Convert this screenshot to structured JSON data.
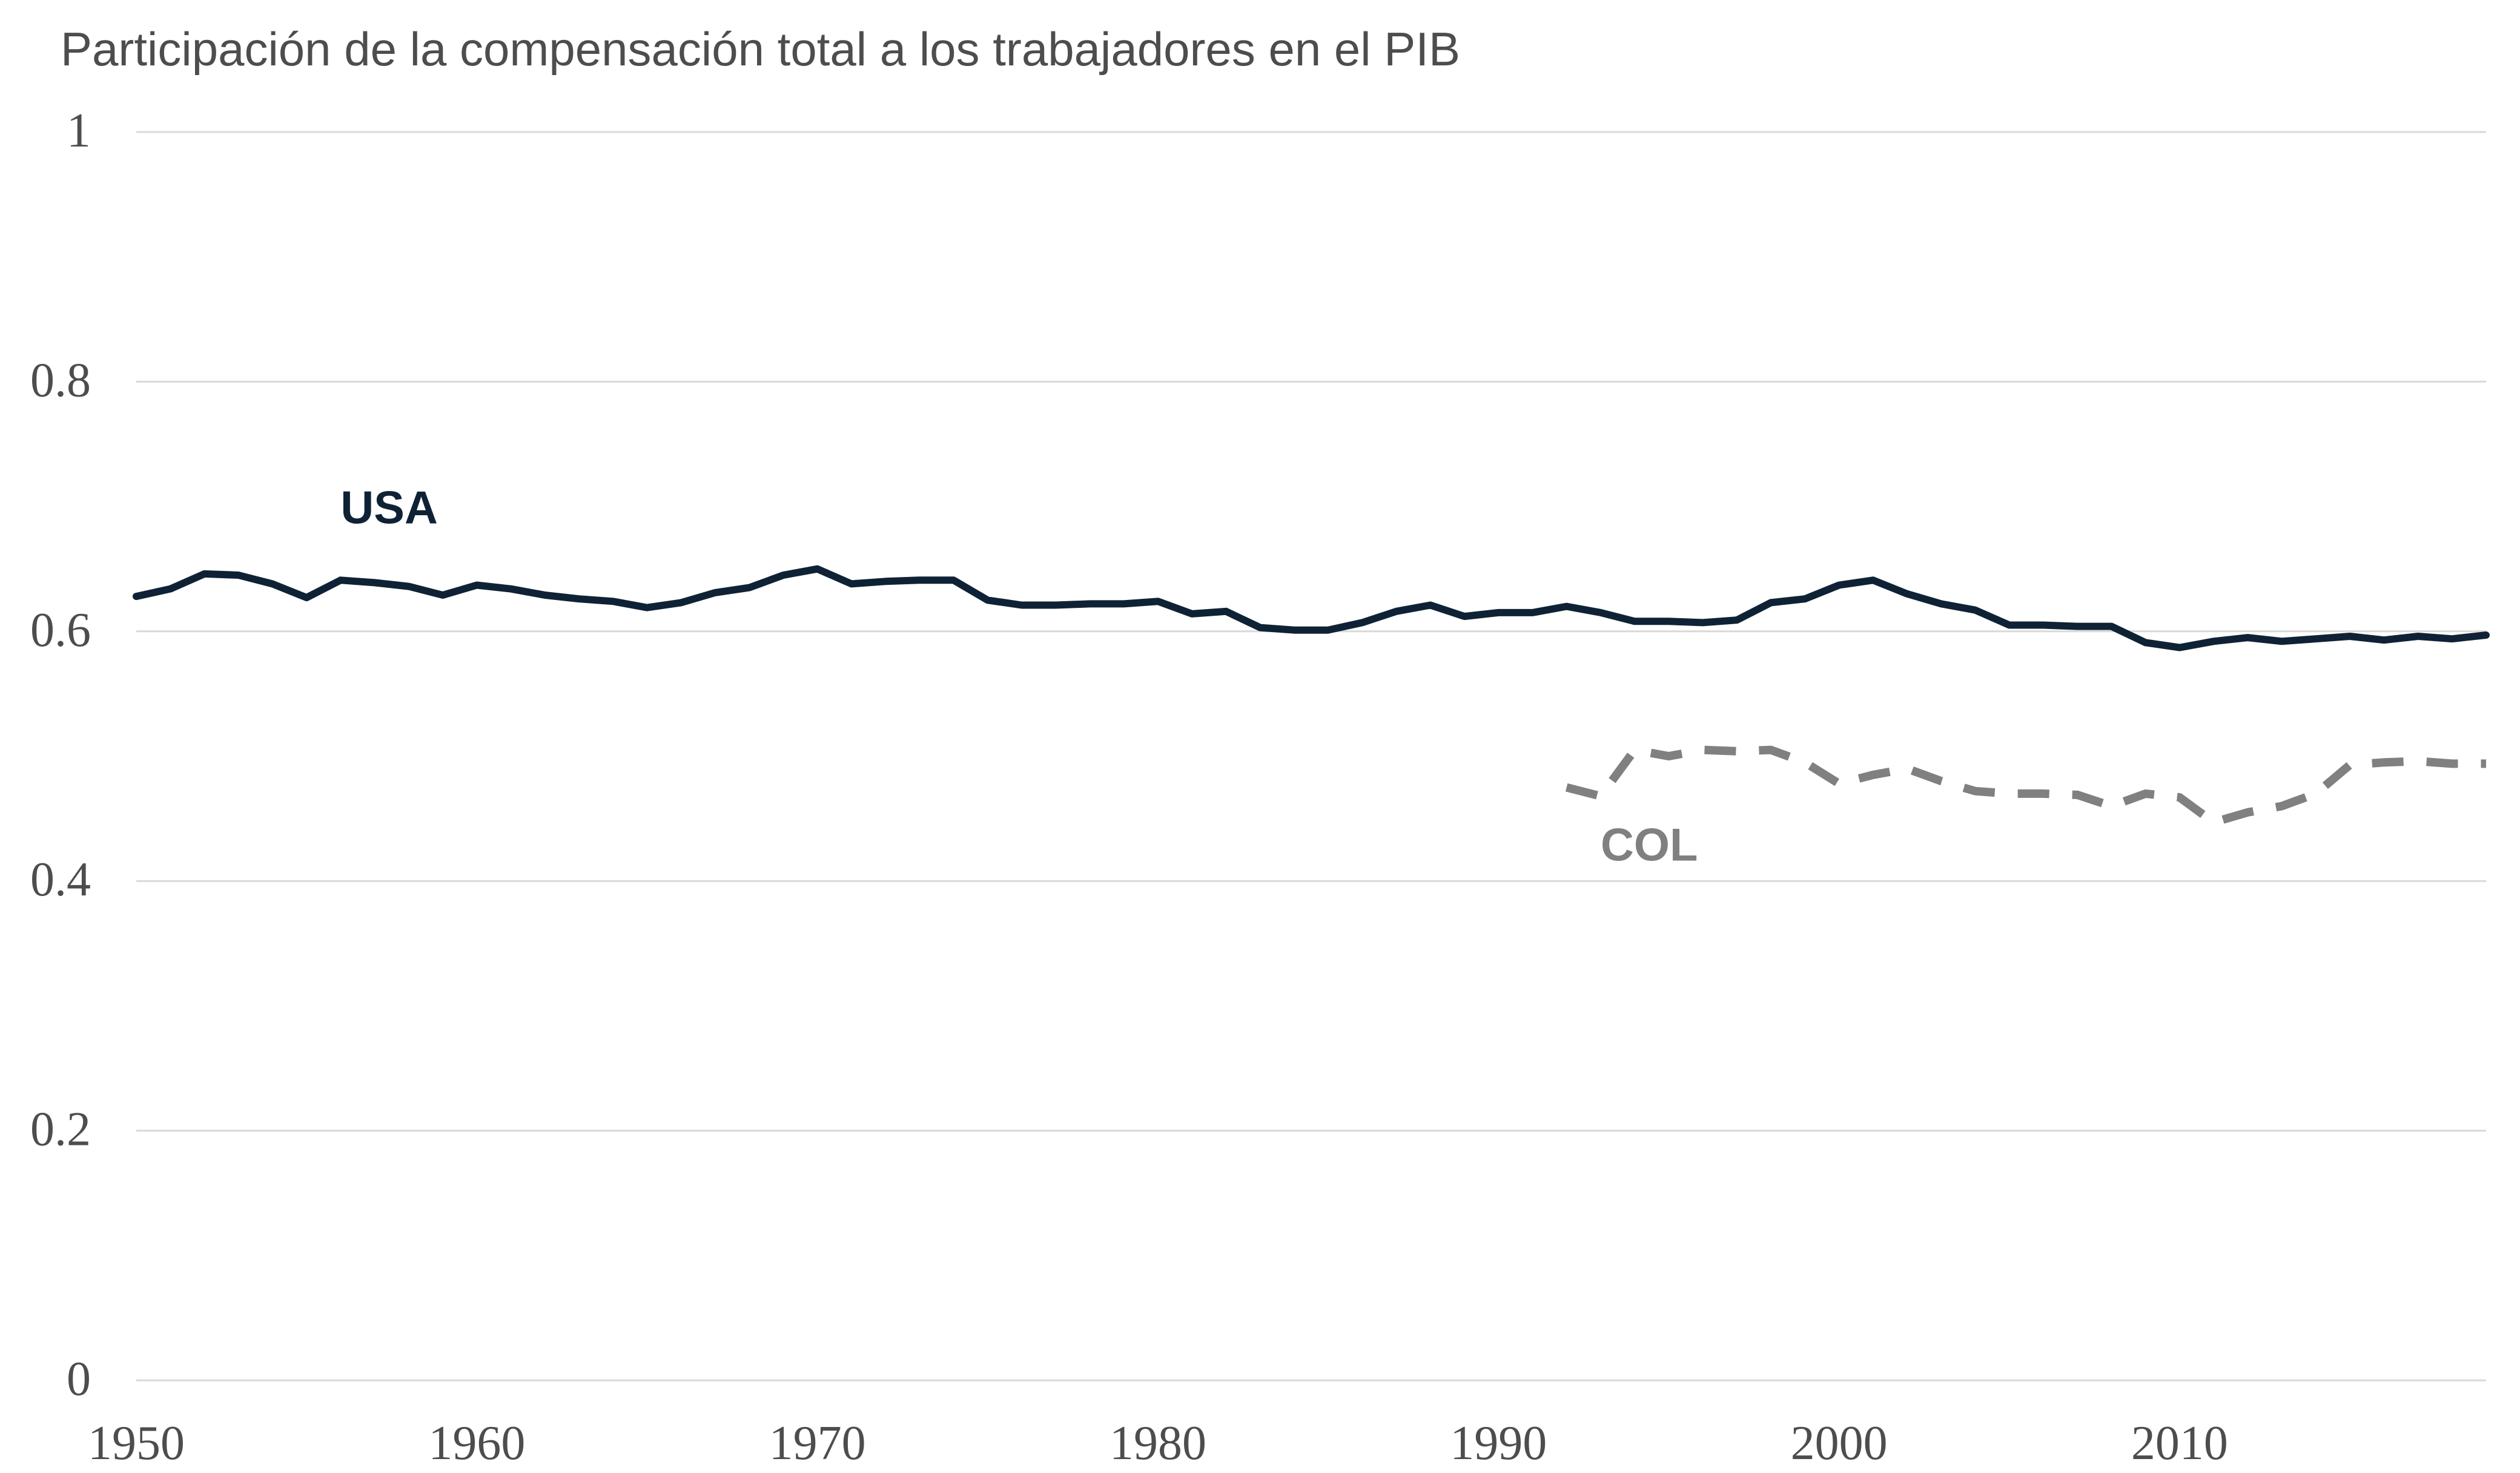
{
  "chart_data": {
    "type": "line",
    "title": "Participación de la compensación total a los trabajadores en el PIB",
    "xlabel": "",
    "ylabel": "",
    "xlim": [
      1950,
      2019
    ],
    "ylim": [
      0,
      1
    ],
    "grid": true,
    "legend": "inline labels",
    "x_ticks": [
      1950,
      1960,
      1970,
      1980,
      1990,
      2000,
      2010
    ],
    "y_ticks": [
      {
        "value": 0,
        "label": "0"
      },
      {
        "value": 0.2,
        "label": "0.2"
      },
      {
        "value": 0.4,
        "label": "0.4"
      },
      {
        "value": 0.6,
        "label": "0.6"
      },
      {
        "value": 0.8,
        "label": "0.8"
      },
      {
        "value": 1,
        "label": "1"
      }
    ],
    "series": [
      {
        "name": "USA",
        "color": "#0f2235",
        "style": "solid",
        "label_year": 1956,
        "label_value": 0.7,
        "x": [
          1950,
          1951,
          1952,
          1953,
          1954,
          1955,
          1956,
          1957,
          1958,
          1959,
          1960,
          1961,
          1962,
          1963,
          1964,
          1965,
          1966,
          1967,
          1968,
          1969,
          1970,
          1971,
          1972,
          1973,
          1974,
          1975,
          1976,
          1977,
          1978,
          1979,
          1980,
          1981,
          1982,
          1983,
          1984,
          1985,
          1986,
          1987,
          1988,
          1989,
          1990,
          1991,
          1992,
          1993,
          1994,
          1995,
          1996,
          1997,
          1998,
          1999,
          2000,
          2001,
          2002,
          2003,
          2004,
          2005,
          2006,
          2007,
          2008,
          2009,
          2010,
          2011,
          2012,
          2013,
          2014,
          2015,
          2016,
          2017,
          2018,
          2019
        ],
        "values": [
          0.628,
          0.634,
          0.646,
          0.645,
          0.638,
          0.627,
          0.641,
          0.639,
          0.636,
          0.629,
          0.637,
          0.634,
          0.629,
          0.626,
          0.624,
          0.619,
          0.623,
          0.631,
          0.635,
          0.645,
          0.65,
          0.638,
          0.64,
          0.641,
          0.641,
          0.625,
          0.621,
          0.621,
          0.622,
          0.622,
          0.624,
          0.614,
          0.616,
          0.603,
          0.601,
          0.601,
          0.607,
          0.616,
          0.621,
          0.612,
          0.615,
          0.615,
          0.62,
          0.615,
          0.608,
          0.608,
          0.607,
          0.609,
          0.623,
          0.626,
          0.637,
          0.641,
          0.63,
          0.622,
          0.617,
          0.605,
          0.605,
          0.604,
          0.604,
          0.591,
          0.587,
          0.592,
          0.595,
          0.592,
          0.594,
          0.596,
          0.593,
          0.596,
          0.594,
          0.597
        ]
      },
      {
        "name": "COL",
        "color": "#808080",
        "style": "dashed",
        "label_year": 1993,
        "label_value": 0.43,
        "x": [
          1992,
          1993,
          1994,
          1995,
          1996,
          1997,
          1998,
          1999,
          2000,
          2001,
          2002,
          2003,
          2004,
          2005,
          2006,
          2007,
          2008,
          2009,
          2010,
          2011,
          2012,
          2013,
          2014,
          2015,
          2016,
          2017,
          2018,
          2019
        ],
        "values": [
          0.475,
          0.468,
          0.505,
          0.5,
          0.505,
          0.504,
          0.505,
          0.495,
          0.478,
          0.485,
          0.49,
          0.48,
          0.472,
          0.47,
          0.47,
          0.469,
          0.46,
          0.47,
          0.467,
          0.447,
          0.455,
          0.46,
          0.47,
          0.493,
          0.495,
          0.496,
          0.494,
          0.494
        ]
      }
    ]
  }
}
